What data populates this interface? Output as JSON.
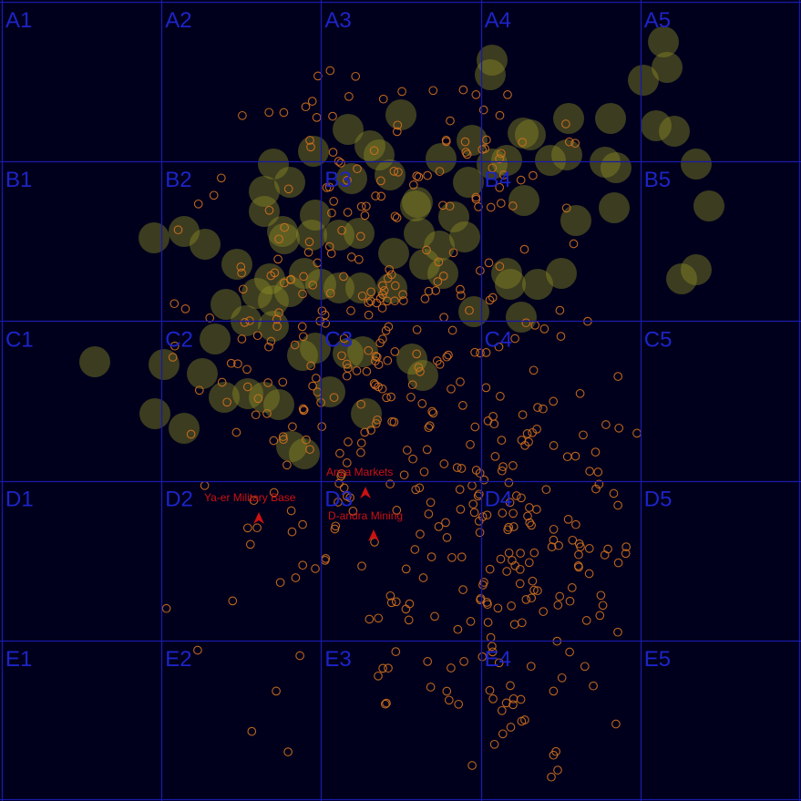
{
  "map": {
    "rows": [
      "A",
      "B",
      "C",
      "D",
      "E"
    ],
    "columns": [
      "1",
      "2",
      "3",
      "4",
      "5"
    ],
    "sector_labels": [
      "A1",
      "A2",
      "A3",
      "A4",
      "A5",
      "B1",
      "B2",
      "B3",
      "B4",
      "B5",
      "C1",
      "C2",
      "C3",
      "C4",
      "C5",
      "D1",
      "D2",
      "D3",
      "D4",
      "D5",
      "E1",
      "E2",
      "E3",
      "E4",
      "E5"
    ],
    "colors": {
      "background": "#00001c",
      "grid": "#1a1aa8",
      "sector_label": "#1d24c8",
      "ring": "#d0701e",
      "blob": "#8f8f25",
      "poi": "#cc1111"
    },
    "points_of_interest": [
      {
        "name": "Anza Markets",
        "sector": "D3",
        "icon": "chevron-marker-icon"
      },
      {
        "name": "Ya-er Military Base",
        "sector": "D2",
        "icon": "chevron-marker-icon"
      },
      {
        "name": "D-andra Mining",
        "sector": "D3",
        "icon": "chevron-marker-icon"
      }
    ]
  }
}
